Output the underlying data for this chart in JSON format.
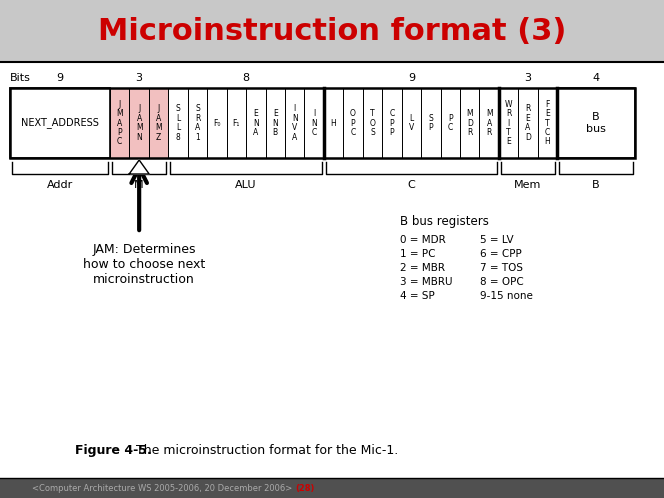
{
  "title": "Microinstruction format (3)",
  "title_color": "#cc0000",
  "title_fontsize": 22,
  "bg_color": "#d0d0d0",
  "slide_bg": "#ffffff",
  "next_addr_label": "NEXT_ADDRESS",
  "b_bus_label": "B\nbus",
  "jam_text": "JAM: Determines\nhow to choose next\nmicroinstruction",
  "figure_caption_bold": "Figure 4-5.",
  "figure_caption_rest": "  The microinstruction format for the Mic-1.",
  "footer_main": "<Computer Architecture WS 2005-2006, 20 December 2006> ",
  "footer_highlight": "(28)",
  "b_bus_registers_title": "B bus registers",
  "b_bus_col1": [
    "0 = MDR",
    "1 = PC",
    "2 = MBR",
    "3 = MBRU",
    "4 = SP"
  ],
  "b_bus_col2": [
    "5 = LV",
    "6 = CPP",
    "7 = TOS",
    "8 = OPC",
    "9-15 none"
  ],
  "jam_color": "#f2c0c0",
  "cell_defs": [
    {
      "label": "J\nM\nA\nP\nC",
      "bits": 1,
      "color": "#f2c0c0",
      "bold_left": false
    },
    {
      "label": "J\nA\nM\nN",
      "bits": 1,
      "color": "#f2c0c0",
      "bold_left": false
    },
    {
      "label": "J\nA\nM\nZ",
      "bits": 1,
      "color": "#f2c0c0",
      "bold_left": false
    },
    {
      "label": "S\nL\nL\n8",
      "bits": 1,
      "color": "#ffffff",
      "bold_left": false
    },
    {
      "label": "S\nR\nA\n1",
      "bits": 1,
      "color": "#ffffff",
      "bold_left": false
    },
    {
      "label": "F₀",
      "bits": 1,
      "color": "#ffffff",
      "bold_left": false
    },
    {
      "label": "F₁",
      "bits": 1,
      "color": "#ffffff",
      "bold_left": false
    },
    {
      "label": "E\nN\nA",
      "bits": 1,
      "color": "#ffffff",
      "bold_left": false
    },
    {
      "label": "E\nN\nB",
      "bits": 1,
      "color": "#ffffff",
      "bold_left": false
    },
    {
      "label": "I\nN\nV\nA",
      "bits": 1,
      "color": "#ffffff",
      "bold_left": false
    },
    {
      "label": "I\nN\nC",
      "bits": 1,
      "color": "#ffffff",
      "bold_left": false
    },
    {
      "label": "H",
      "bits": 1,
      "color": "#ffffff",
      "bold_left": true
    },
    {
      "label": "O\nP\nC",
      "bits": 1,
      "color": "#ffffff",
      "bold_left": false
    },
    {
      "label": "T\nO\nS",
      "bits": 1,
      "color": "#ffffff",
      "bold_left": false
    },
    {
      "label": "C\nP\nP",
      "bits": 1,
      "color": "#ffffff",
      "bold_left": false
    },
    {
      "label": "L\nV",
      "bits": 1,
      "color": "#ffffff",
      "bold_left": false
    },
    {
      "label": "S\nP",
      "bits": 1,
      "color": "#ffffff",
      "bold_left": false
    },
    {
      "label": "P\nC",
      "bits": 1,
      "color": "#ffffff",
      "bold_left": false
    },
    {
      "label": "M\nD\nR",
      "bits": 1,
      "color": "#ffffff",
      "bold_left": false
    },
    {
      "label": "M\nA\nR",
      "bits": 1,
      "color": "#ffffff",
      "bold_left": false
    },
    {
      "label": "W\nR\nI\nT\nE",
      "bits": 1,
      "color": "#ffffff",
      "bold_left": true
    },
    {
      "label": "R\nE\nA\nD",
      "bits": 1,
      "color": "#ffffff",
      "bold_left": false
    },
    {
      "label": "F\nE\nT\nC\nH",
      "bits": 1,
      "color": "#ffffff",
      "bold_left": false
    }
  ]
}
